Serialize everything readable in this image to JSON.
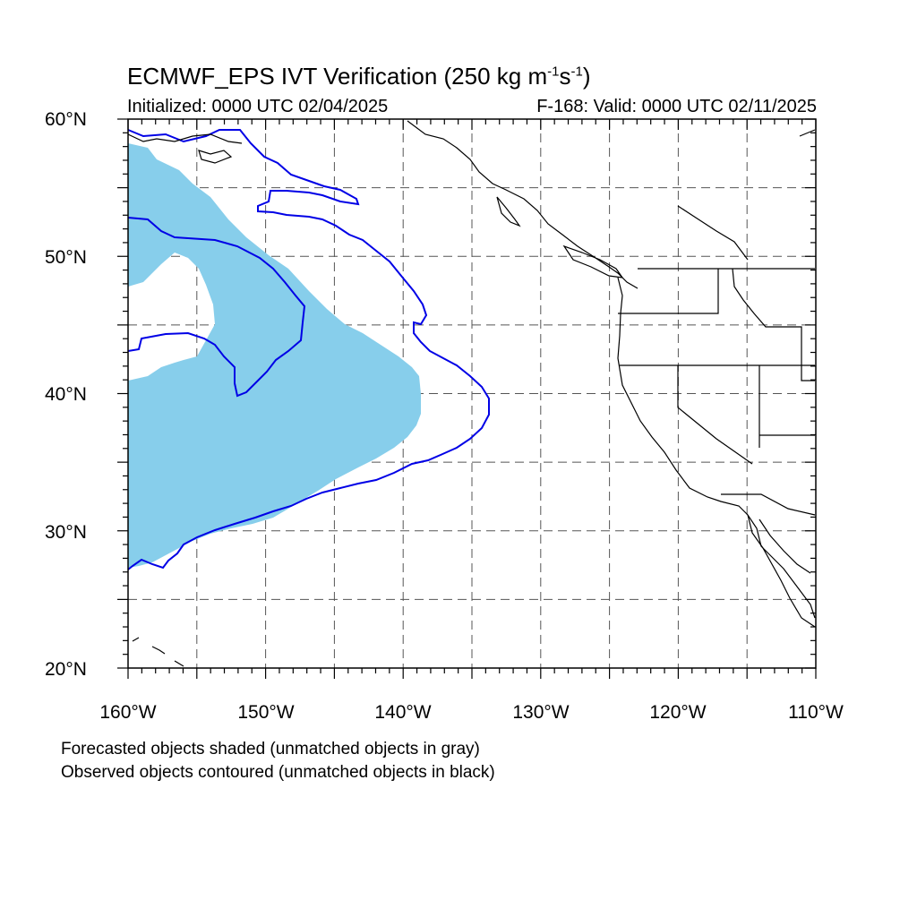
{
  "title": {
    "main": "ECMWF_EPS IVT Verification (250 kg m",
    "exp1": "-1",
    "mid": "s",
    "exp2": "-1",
    "end": ")"
  },
  "subtitle": {
    "initialized": "Initialized: 0000 UTC 02/04/2025",
    "valid": "F-168: Valid: 0000 UTC 02/11/2025"
  },
  "axes": {
    "lat_labels": [
      "60°N",
      "50°N",
      "40°N",
      "30°N",
      "20°N"
    ],
    "lon_labels": [
      "160°W",
      "150°W",
      "140°W",
      "130°W",
      "120°W",
      "110°W"
    ],
    "lat_range": [
      20,
      60
    ],
    "lon_range": [
      -160,
      -110
    ],
    "grid": "dashed, every 5 degrees"
  },
  "notes": [
    "Forecasted objects shaded (unmatched objects in gray)",
    "Observed objects contoured (unmatched objects in black)"
  ],
  "colors": {
    "forecast_fill": "#87ceeb",
    "observed_contour": "#0000e6",
    "coastline": "#000000",
    "grid": "#555555"
  }
}
